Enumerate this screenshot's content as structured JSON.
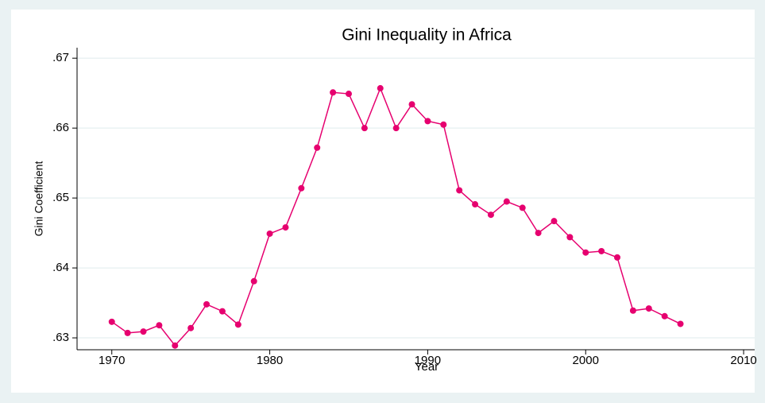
{
  "chart_data": {
    "type": "line",
    "title": "Gini Inequality in Africa",
    "x_label": "Year",
    "y_label": "Gini Coefficient",
    "color": "#e6006f",
    "x": [
      1970,
      1971,
      1972,
      1973,
      1974,
      1975,
      1976,
      1977,
      1978,
      1979,
      1980,
      1981,
      1982,
      1983,
      1984,
      1985,
      1986,
      1987,
      1988,
      1989,
      1990,
      1991,
      1992,
      1993,
      1994,
      1995,
      1996,
      1997,
      1998,
      1999,
      2000,
      2001,
      2002,
      2003,
      2004,
      2005,
      2006
    ],
    "values": [
      0.6323,
      0.6307,
      0.6309,
      0.6318,
      0.6289,
      0.6314,
      0.6348,
      0.6338,
      0.6319,
      0.6381,
      0.6449,
      0.6458,
      0.6514,
      0.6572,
      0.6651,
      0.6649,
      0.66,
      0.6657,
      0.66,
      0.6634,
      0.661,
      0.6605,
      0.6511,
      0.6491,
      0.6476,
      0.6495,
      0.6486,
      0.645,
      0.6467,
      0.6444,
      0.6422,
      0.6424,
      0.6415,
      0.6339,
      0.6342,
      0.6331,
      0.632
    ],
    "xlim": [
      1967.8,
      2010.7
    ],
    "ylim": [
      0.6283,
      0.6715
    ],
    "xticks": [
      1970,
      1980,
      1990,
      2000,
      2010
    ],
    "yticks": [
      {
        "value": 0.63,
        "label": ".63"
      },
      {
        "value": 0.64,
        "label": ".64"
      },
      {
        "value": 0.65,
        "label": ".65"
      },
      {
        "value": 0.66,
        "label": ".66"
      },
      {
        "value": 0.67,
        "label": ".67"
      }
    ],
    "grid": true
  }
}
